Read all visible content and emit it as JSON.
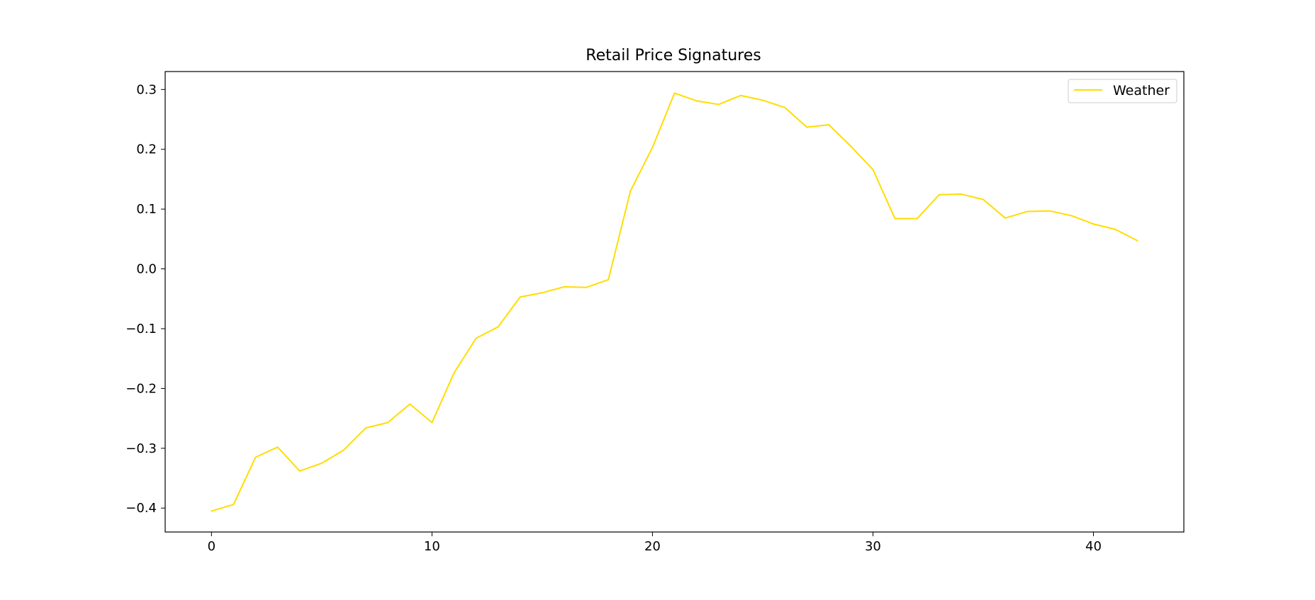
{
  "chart_data": {
    "type": "line",
    "title": "Retail Price Signatures",
    "xlabel": "",
    "ylabel": "",
    "xlim": [
      -2.1,
      44.1
    ],
    "ylim": [
      -0.44,
      0.33
    ],
    "xticks": [
      0,
      10,
      20,
      30,
      40
    ],
    "xtick_labels": [
      "0",
      "10",
      "20",
      "30",
      "40"
    ],
    "yticks": [
      -0.4,
      -0.3,
      -0.2,
      -0.1,
      0.0,
      0.1,
      0.2,
      0.3
    ],
    "ytick_labels": [
      "−0.4",
      "−0.3",
      "−0.2",
      "−0.1",
      "0.0",
      "0.1",
      "0.2",
      "0.3"
    ],
    "grid": false,
    "legend_position": "top-right",
    "series": [
      {
        "name": "Weather",
        "color": "#ffdd00",
        "x": [
          0,
          1,
          2,
          3,
          4,
          5,
          6,
          7,
          8,
          9,
          10,
          11,
          12,
          13,
          14,
          15,
          16,
          17,
          18,
          19,
          20,
          21,
          22,
          23,
          24,
          25,
          26,
          27,
          28,
          29,
          30,
          31,
          32,
          33,
          34,
          35,
          36,
          37,
          38,
          39,
          40,
          41,
          42
        ],
        "values": [
          -0.405,
          -0.394,
          -0.315,
          -0.298,
          -0.338,
          -0.325,
          -0.303,
          -0.266,
          -0.257,
          -0.226,
          -0.257,
          -0.174,
          -0.116,
          -0.097,
          -0.047,
          -0.04,
          -0.03,
          -0.031,
          -0.018,
          0.13,
          0.203,
          0.294,
          0.281,
          0.275,
          0.29,
          0.282,
          0.27,
          0.237,
          0.241,
          0.205,
          0.166,
          0.084,
          0.084,
          0.124,
          0.125,
          0.116,
          0.085,
          0.096,
          0.097,
          0.089,
          0.075,
          0.066,
          0.047
        ]
      }
    ]
  }
}
